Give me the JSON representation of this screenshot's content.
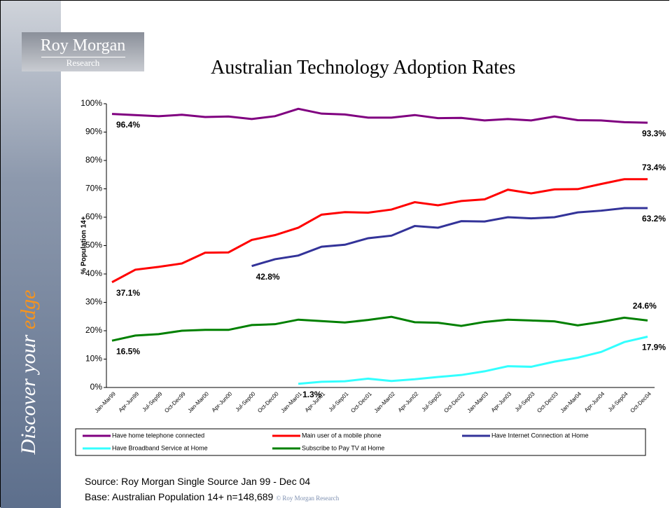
{
  "logo": {
    "line1": "Roy Morgan",
    "line2": "Research"
  },
  "side_text": {
    "main": "Discover your",
    "accent": "edge"
  },
  "source": "Source: Roy Morgan Single Source Jan 99 - Dec 04",
  "base": "Base: Australian Population 14+ n=148,689",
  "copyright": "© Roy Morgan Research",
  "chart_data": {
    "type": "line",
    "title": "Australian Technology Adoption Rates",
    "y_label": "% Population 14+",
    "categories": [
      "Jan-Mar99",
      "Apr-Jun99",
      "Jul-Sep99",
      "Oct-Dec99",
      "Jan-Mar00",
      "Apr-Jun00",
      "Jul-Sep00",
      "Oct-Dec00",
      "Jan-Mar01",
      "Apr-Jun01",
      "Jul-Sep01",
      "Oct-Dec01",
      "Jan-Mar02",
      "Apr-Jun02",
      "Jul-Sep02",
      "Oct-Dec02",
      "Jan-Mar03",
      "Apr-Jun03",
      "Jul-Sep03",
      "Oct-Dec03",
      "Jan-Mar04",
      "Apr-Jun04",
      "Jul-Sep04",
      "Oct-Dec04"
    ],
    "ylim": [
      0,
      100
    ],
    "yticks": [
      {
        "value": 0,
        "label": "0%"
      },
      {
        "value": 10,
        "label": "10%"
      },
      {
        "value": 20,
        "label": "20%"
      },
      {
        "value": 30,
        "label": "30%"
      },
      {
        "value": 40,
        "label": "40%"
      },
      {
        "value": 50,
        "label": "50%"
      },
      {
        "value": 60,
        "label": "60%"
      },
      {
        "value": 70,
        "label": "70%"
      },
      {
        "value": 80,
        "label": "80%"
      },
      {
        "value": 90,
        "label": "90%"
      },
      {
        "value": 100,
        "label": "100%"
      }
    ],
    "series": [
      {
        "name": "Have home telephone connected",
        "color": "#800080",
        "values": [
          96.4,
          96.0,
          95.6,
          96.1,
          95.3,
          95.5,
          94.6,
          95.6,
          98.2,
          96.5,
          96.2,
          95.1,
          95.1,
          96.0,
          94.9,
          95.0,
          94.1,
          94.6,
          94.1,
          95.5,
          94.2,
          94.1,
          93.5,
          93.3
        ],
        "value_labels": [
          "96.4%",
          null,
          null,
          null,
          null,
          null,
          null,
          null,
          null,
          null,
          null,
          null,
          null,
          null,
          null,
          null,
          null,
          null,
          null,
          null,
          null,
          null,
          null,
          "93.3%"
        ]
      },
      {
        "name": "Main user of a mobile phone",
        "color": "#ff0000",
        "values": [
          37.1,
          41.5,
          42.5,
          43.7,
          47.5,
          47.6,
          52.0,
          53.7,
          56.3,
          60.9,
          61.8,
          61.6,
          62.7,
          65.3,
          64.2,
          65.7,
          66.3,
          69.7,
          68.4,
          69.8,
          69.9,
          71.7,
          73.4,
          73.4
        ],
        "value_labels": [
          "37.1%",
          null,
          null,
          null,
          null,
          null,
          null,
          null,
          null,
          null,
          null,
          null,
          null,
          null,
          null,
          null,
          null,
          null,
          null,
          null,
          null,
          null,
          null,
          "73.4%"
        ]
      },
      {
        "name": "Have Internet Connection at Home",
        "color": "#333399",
        "values": [
          null,
          null,
          null,
          null,
          null,
          null,
          42.8,
          45.2,
          46.5,
          49.6,
          50.3,
          52.6,
          53.5,
          56.9,
          56.3,
          58.6,
          58.5,
          60.0,
          59.6,
          60.0,
          61.7,
          62.3,
          63.2,
          63.2
        ],
        "value_labels": [
          null,
          null,
          null,
          null,
          null,
          null,
          "42.8%",
          null,
          null,
          null,
          null,
          null,
          null,
          null,
          null,
          null,
          null,
          null,
          null,
          null,
          null,
          null,
          null,
          "63.2%"
        ]
      },
      {
        "name": "Have Broadband Service at Home",
        "color": "#33ffff",
        "values": [
          null,
          null,
          null,
          null,
          null,
          null,
          null,
          null,
          1.3,
          2.0,
          2.2,
          3.1,
          2.3,
          2.9,
          3.7,
          4.4,
          5.7,
          7.5,
          7.3,
          9.1,
          10.5,
          12.5,
          16.0,
          17.9
        ],
        "value_labels": [
          null,
          null,
          null,
          null,
          null,
          null,
          null,
          null,
          "1.3%",
          null,
          null,
          null,
          null,
          null,
          null,
          null,
          null,
          null,
          null,
          null,
          null,
          null,
          null,
          "17.9%"
        ]
      },
      {
        "name": "Subscribe to Pay TV at Home",
        "color": "#008000",
        "values": [
          16.5,
          18.3,
          18.8,
          20.0,
          20.3,
          20.3,
          22.0,
          22.3,
          23.9,
          23.4,
          22.9,
          23.8,
          24.9,
          23.0,
          22.8,
          21.7,
          23.1,
          23.9,
          23.6,
          23.3,
          21.9,
          23.1,
          24.6,
          23.6
        ],
        "value_labels": [
          "16.5%",
          null,
          null,
          null,
          null,
          null,
          null,
          null,
          null,
          null,
          null,
          null,
          null,
          null,
          null,
          null,
          null,
          null,
          null,
          null,
          null,
          null,
          "24.6%",
          null
        ]
      }
    ]
  }
}
